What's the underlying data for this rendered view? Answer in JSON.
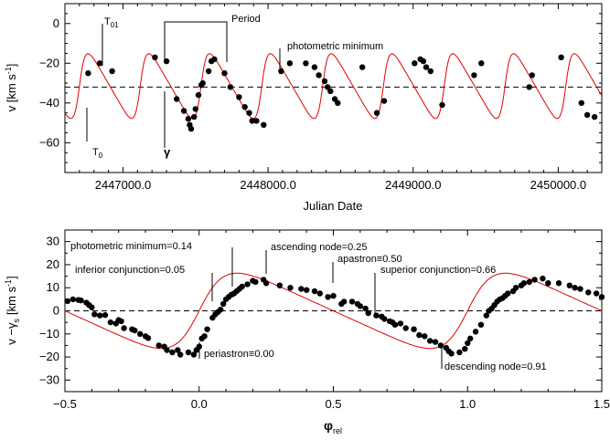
{
  "chart_data": [
    {
      "type": "scatter",
      "xlabel": "Julian Date",
      "ylabel_main": "v  [km s",
      "ylabel_sup": "-1",
      "ylabel_close": "]",
      "xlim": [
        2446600,
        2450300
      ],
      "ylim": [
        -75,
        10
      ],
      "x_ticks": [
        2447000,
        2448000,
        2449000,
        2450000
      ],
      "x_tick_labels": [
        "2447000.0",
        "2448000.0",
        "2449000.0",
        "2450000.0"
      ],
      "y_ticks": [
        0,
        -20,
        -40,
        -60
      ],
      "y_tick_labels": [
        "0",
        "−20",
        "−40",
        "−60"
      ],
      "gamma_line": -32,
      "model": {
        "gamma": -31.5,
        "K": 16.3,
        "e": 0.35,
        "omega_deg": 270,
        "period_days": 419,
        "phase_zero_jd": 2446700,
        "color": "#e00000"
      },
      "points": [
        [
          2446760,
          -25
        ],
        [
          2446840,
          -20
        ],
        [
          2446925,
          -24
        ],
        [
          2447220,
          -17
        ],
        [
          2447300,
          -19
        ],
        [
          2447370,
          -38
        ],
        [
          2447420,
          -44
        ],
        [
          2447450,
          -48
        ],
        [
          2447460,
          -51
        ],
        [
          2447470,
          -53
        ],
        [
          2447490,
          -47
        ],
        [
          2447500,
          -43
        ],
        [
          2447520,
          -36
        ],
        [
          2447540,
          -31
        ],
        [
          2447550,
          -30
        ],
        [
          2447590,
          -24
        ],
        [
          2447610,
          -19
        ],
        [
          2447630,
          -18
        ],
        [
          2447700,
          -25
        ],
        [
          2447740,
          -32
        ],
        [
          2447800,
          -37
        ],
        [
          2447840,
          -42
        ],
        [
          2447870,
          -45
        ],
        [
          2447890,
          -49
        ],
        [
          2447920,
          -49
        ],
        [
          2447970,
          -51
        ],
        [
          2448090,
          -24
        ],
        [
          2448150,
          -20
        ],
        [
          2448260,
          -20
        ],
        [
          2448320,
          -22
        ],
        [
          2448350,
          -26
        ],
        [
          2448390,
          -29
        ],
        [
          2448410,
          -32
        ],
        [
          2448430,
          -34
        ],
        [
          2448460,
          -38
        ],
        [
          2448480,
          -40
        ],
        [
          2448650,
          -22
        ],
        [
          2448750,
          -45
        ],
        [
          2448800,
          -39
        ],
        [
          2449010,
          -20
        ],
        [
          2449050,
          -18
        ],
        [
          2449070,
          -19
        ],
        [
          2449090,
          -22
        ],
        [
          2449120,
          -24
        ],
        [
          2449200,
          -41
        ],
        [
          2449420,
          -26
        ],
        [
          2449470,
          -20
        ],
        [
          2449800,
          -32
        ],
        [
          2449820,
          -26
        ],
        [
          2450020,
          -17
        ],
        [
          2450160,
          -40
        ],
        [
          2450200,
          -46
        ],
        [
          2450250,
          -47
        ]
      ],
      "annotations": {
        "t01": "T",
        "t01_sub": "01",
        "t0": "T",
        "t0_sub": "0",
        "period": "Period",
        "gamma_symbol": "γ",
        "photometric_minimum": "photometric minimum"
      }
    },
    {
      "type": "scatter",
      "xlabel": "φ",
      "xlabel_sub": "rel",
      "ylabel_main": "v −γ",
      "ylabel_sub": "s",
      "ylabel_units": "[km s",
      "ylabel_sup": "-1",
      "ylabel_close": "]",
      "xlim": [
        -0.5,
        1.5
      ],
      "ylim": [
        -35,
        35
      ],
      "x_ticks": [
        -0.5,
        0.0,
        0.5,
        1.0,
        1.5
      ],
      "x_tick_labels": [
        "−0.5",
        "0.0",
        "0.5",
        "1.0",
        "1.5"
      ],
      "y_ticks": [
        30,
        20,
        10,
        0,
        -10,
        -20,
        -30
      ],
      "y_tick_labels": [
        "30",
        "20",
        "10",
        "0",
        "−10",
        "−20",
        "−30"
      ],
      "zero_line": 0,
      "model": {
        "K": 16.3,
        "e": 0.35,
        "omega_deg": 270,
        "color": "#e00000"
      },
      "points": [
        [
          -0.49,
          4.2
        ],
        [
          -0.47,
          5
        ],
        [
          -0.45,
          4.7
        ],
        [
          -0.44,
          4.5
        ],
        [
          -0.42,
          3.5
        ],
        [
          -0.41,
          2.5
        ],
        [
          -0.4,
          1.5
        ],
        [
          -0.39,
          -1.5
        ],
        [
          -0.37,
          -2
        ],
        [
          -0.35,
          -1.8
        ],
        [
          -0.33,
          -5
        ],
        [
          -0.31,
          -5.5
        ],
        [
          -0.3,
          -4
        ],
        [
          -0.29,
          -4.5
        ],
        [
          -0.28,
          -7.5
        ],
        [
          -0.25,
          -8
        ],
        [
          -0.24,
          -8.5
        ],
        [
          -0.22,
          -10
        ],
        [
          -0.2,
          -11
        ],
        [
          -0.19,
          -11.8
        ],
        [
          -0.15,
          -15
        ],
        [
          -0.13,
          -15.5
        ],
        [
          -0.12,
          -17
        ],
        [
          -0.1,
          -18
        ],
        [
          -0.08,
          -17
        ],
        [
          -0.07,
          -19
        ],
        [
          -0.04,
          -18
        ],
        [
          -0.02,
          -19
        ],
        [
          -0.01,
          -17
        ],
        [
          0.0,
          -15.5
        ],
        [
          0.01,
          -12
        ],
        [
          0.02,
          -11
        ],
        [
          0.03,
          -8
        ],
        [
          0.05,
          -3
        ],
        [
          0.06,
          -1.5
        ],
        [
          0.07,
          -0.5
        ],
        [
          0.08,
          0.5
        ],
        [
          0.09,
          3
        ],
        [
          0.1,
          5
        ],
        [
          0.11,
          6
        ],
        [
          0.12,
          7
        ],
        [
          0.13,
          7.5
        ],
        [
          0.14,
          8.5
        ],
        [
          0.15,
          9.5
        ],
        [
          0.16,
          10.5
        ],
        [
          0.18,
          11.5
        ],
        [
          0.2,
          13
        ],
        [
          0.21,
          12.5
        ],
        [
          0.24,
          13.5
        ],
        [
          0.25,
          12
        ],
        [
          0.3,
          11
        ],
        [
          0.34,
          10
        ],
        [
          0.38,
          9.5
        ],
        [
          0.4,
          9
        ],
        [
          0.43,
          8.5
        ],
        [
          0.45,
          7.5
        ],
        [
          0.48,
          6
        ],
        [
          0.5,
          6.5
        ],
        [
          0.53,
          3
        ],
        [
          0.54,
          4
        ],
        [
          0.57,
          4
        ],
        [
          0.59,
          3
        ],
        [
          0.6,
          2
        ],
        [
          0.62,
          1
        ],
        [
          0.63,
          -1
        ],
        [
          0.66,
          -2
        ],
        [
          0.68,
          -2.5
        ],
        [
          0.69,
          -3.5
        ],
        [
          0.71,
          -4.5
        ],
        [
          0.72,
          -5
        ],
        [
          0.73,
          -6
        ],
        [
          0.75,
          -5.5
        ],
        [
          0.77,
          -7.5
        ],
        [
          0.8,
          -8
        ],
        [
          0.82,
          -10.5
        ],
        [
          0.84,
          -11
        ],
        [
          0.86,
          -13
        ],
        [
          0.88,
          -13.5
        ],
        [
          0.9,
          -15
        ],
        [
          0.92,
          -16
        ],
        [
          0.93,
          -17.5
        ],
        [
          0.94,
          -18.5
        ],
        [
          0.97,
          -18
        ],
        [
          0.99,
          -16.5
        ],
        [
          1.0,
          -14
        ],
        [
          1.01,
          -12
        ],
        [
          1.03,
          -9
        ],
        [
          1.05,
          -6
        ],
        [
          1.07,
          -2
        ],
        [
          1.08,
          0
        ],
        [
          1.09,
          1
        ],
        [
          1.1,
          2.5
        ],
        [
          1.11,
          4
        ],
        [
          1.12,
          5
        ],
        [
          1.13,
          5.5
        ],
        [
          1.14,
          6.5
        ],
        [
          1.15,
          7.5
        ],
        [
          1.17,
          8.5
        ],
        [
          1.18,
          10
        ],
        [
          1.2,
          11
        ],
        [
          1.21,
          12
        ],
        [
          1.23,
          12.5
        ],
        [
          1.25,
          13.5
        ],
        [
          1.28,
          14
        ],
        [
          1.3,
          12
        ],
        [
          1.34,
          12
        ],
        [
          1.38,
          11
        ],
        [
          1.4,
          10
        ],
        [
          1.42,
          9.5
        ],
        [
          1.45,
          8
        ],
        [
          1.48,
          7.5
        ],
        [
          1.5,
          6
        ]
      ],
      "annotations": {
        "photometric_minimum": "photometric minimum=0.14",
        "inferior_conjunction": "inferior conjunction=0.05",
        "ascending_node": "ascending node=0.25",
        "apastron": "apastron≡0.50",
        "superior_conjunction": "superior conjunction=0.66",
        "periastron": "periastron≡0.00",
        "descending_node": "descending node=0.91"
      }
    }
  ]
}
